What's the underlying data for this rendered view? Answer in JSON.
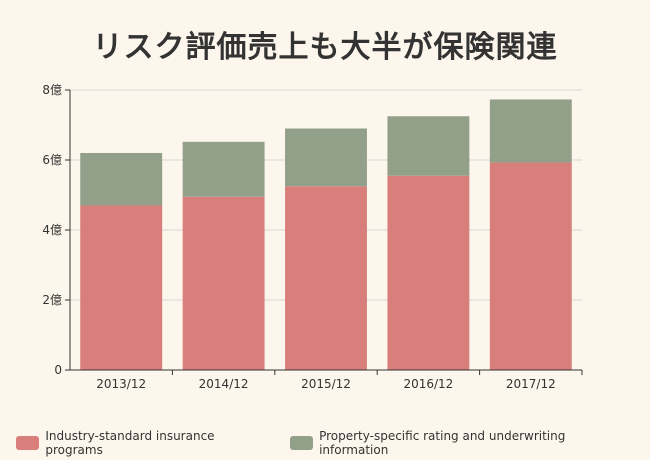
{
  "chart_data": {
    "type": "bar",
    "stacked": true,
    "title": "リスク評価売上も大半が保険関連",
    "categories": [
      "2013/12",
      "2014/12",
      "2015/12",
      "2016/12",
      "2017/12"
    ],
    "series": [
      {
        "name": "Industry-standard insurance programs",
        "color": "#d87f7c",
        "values": [
          4.7,
          4.95,
          5.25,
          5.55,
          5.93
        ]
      },
      {
        "name": "Property-specific rating and underwriting information",
        "color": "#92a08a",
        "values": [
          1.5,
          1.57,
          1.65,
          1.7,
          1.8
        ]
      }
    ],
    "yticks": [
      "0",
      "2億",
      "4億",
      "6億",
      "8億"
    ],
    "ylim": [
      0,
      8
    ],
    "grid": true,
    "legend": "bottom"
  }
}
